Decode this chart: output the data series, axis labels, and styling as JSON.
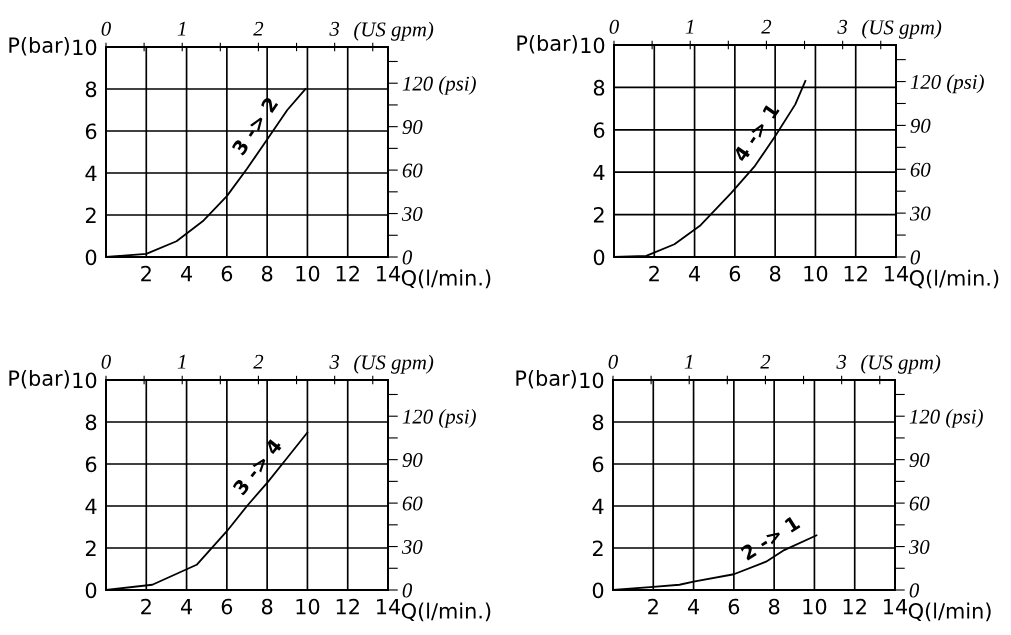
{
  "chart_data": [
    {
      "type": "line",
      "xlabel": "Q(l/min.)",
      "ylabel": "P(bar)",
      "x2label": "(US gpm)",
      "xlim": [
        0,
        14
      ],
      "ylim": [
        0,
        10
      ],
      "xticks": [
        2,
        4,
        6,
        8,
        10,
        12,
        14
      ],
      "yticks": [
        0,
        2,
        4,
        6,
        8,
        10
      ],
      "x2lim": [
        0,
        3.7
      ],
      "x2ticks": [
        0,
        {
          "value": 0.5,
          "label": null
        },
        1,
        {
          "value": 1.5,
          "label": null
        },
        2,
        {
          "value": 2.5,
          "label": null
        },
        3,
        {
          "value": 3.5,
          "label": null
        }
      ],
      "y2lim": [
        0,
        145
      ],
      "y2ticks": [
        0,
        {
          "value": 15,
          "label": null
        },
        30,
        {
          "value": 45,
          "label": null
        },
        60,
        {
          "value": 75,
          "label": null
        },
        90,
        {
          "value": 105,
          "label": null
        },
        {
          "value": 120,
          "label": "120 (psi)"
        },
        {
          "value": 135,
          "label": null
        }
      ],
      "grid": true,
      "marker": "none",
      "line_style": "solid",
      "series": [
        {
          "color": "#000000",
          "x": [
            0,
            2,
            3.5,
            4.8,
            6,
            7,
            8,
            9,
            9.9
          ],
          "values": [
            0,
            0.15,
            0.75,
            1.7,
            2.9,
            4.2,
            5.6,
            7,
            8
          ]
        }
      ],
      "annotations": [
        "3 -> 2"
      ]
    },
    {
      "type": "line",
      "xlabel": "Q(l/min.)",
      "ylabel": "P(bar)",
      "x2label": "(US gpm)",
      "xlim": [
        0,
        14
      ],
      "ylim": [
        0,
        10
      ],
      "xticks": [
        2,
        4,
        6,
        8,
        10,
        12,
        14
      ],
      "yticks": [
        0,
        2,
        4,
        6,
        8,
        10
      ],
      "x2lim": [
        0,
        3.7
      ],
      "x2ticks": [
        0,
        {
          "value": 0.5,
          "label": null
        },
        1,
        {
          "value": 1.5,
          "label": null
        },
        2,
        {
          "value": 2.5,
          "label": null
        },
        3,
        {
          "value": 3.5,
          "label": null
        }
      ],
      "y2lim": [
        0,
        145
      ],
      "y2ticks": [
        0,
        {
          "value": 15,
          "label": null
        },
        30,
        {
          "value": 45,
          "label": null
        },
        60,
        {
          "value": 75,
          "label": null
        },
        90,
        {
          "value": 105,
          "label": null
        },
        {
          "value": 120,
          "label": "120 (psi)"
        },
        {
          "value": 135,
          "label": null
        }
      ],
      "grid": true,
      "marker": "none",
      "line_style": "solid",
      "series": [
        {
          "color": "#000000",
          "x": [
            0,
            1.6,
            3,
            4.3,
            5.8,
            7,
            8,
            9,
            9.5
          ],
          "values": [
            0,
            0.05,
            0.6,
            1.5,
            3,
            4.3,
            5.7,
            7.2,
            8.3
          ]
        }
      ],
      "annotations": [
        "4 -> 1"
      ]
    },
    {
      "type": "line",
      "xlabel": "Q(l/min.)",
      "ylabel": "P(bar)",
      "x2label": "(US gpm)",
      "xlim": [
        0,
        14
      ],
      "ylim": [
        0,
        10
      ],
      "xticks": [
        2,
        4,
        6,
        8,
        10,
        12,
        14
      ],
      "yticks": [
        0,
        2,
        4,
        6,
        8,
        10
      ],
      "x2lim": [
        0,
        3.7
      ],
      "x2ticks": [
        0,
        {
          "value": 0.5,
          "label": null
        },
        1,
        {
          "value": 1.5,
          "label": null
        },
        2,
        {
          "value": 2.5,
          "label": null
        },
        3,
        {
          "value": 3.5,
          "label": null
        }
      ],
      "y2lim": [
        0,
        145
      ],
      "y2ticks": [
        0,
        {
          "value": 15,
          "label": null
        },
        30,
        {
          "value": 45,
          "label": null
        },
        60,
        {
          "value": 75,
          "label": null
        },
        90,
        {
          "value": 105,
          "label": null
        },
        {
          "value": 120,
          "label": "120 (psi)"
        },
        {
          "value": 135,
          "label": null
        }
      ],
      "grid": true,
      "marker": "none",
      "line_style": "solid",
      "series": [
        {
          "color": "#000000",
          "x": [
            0,
            2.3,
            4.5,
            6,
            7,
            8,
            9,
            10
          ],
          "values": [
            0,
            0.25,
            1.2,
            2.8,
            4,
            5.1,
            6.3,
            7.5
          ]
        }
      ],
      "annotations": [
        "3 -> 4"
      ]
    },
    {
      "type": "line",
      "xlabel": "Q(l/min)",
      "ylabel": "P(bar)",
      "x2label": "(US gpm)",
      "xlim": [
        0,
        14
      ],
      "ylim": [
        0,
        10
      ],
      "xticks": [
        2,
        4,
        6,
        8,
        10,
        12,
        14
      ],
      "yticks": [
        0,
        2,
        4,
        6,
        8,
        10
      ],
      "x2lim": [
        0,
        3.7
      ],
      "x2ticks": [
        0,
        {
          "value": 0.5,
          "label": null
        },
        1,
        {
          "value": 1.5,
          "label": null
        },
        2,
        {
          "value": 2.5,
          "label": null
        },
        3,
        {
          "value": 3.5,
          "label": null
        }
      ],
      "y2lim": [
        0,
        145
      ],
      "y2ticks": [
        0,
        {
          "value": 15,
          "label": null
        },
        30,
        {
          "value": 45,
          "label": null
        },
        60,
        {
          "value": 75,
          "label": null
        },
        90,
        {
          "value": 105,
          "label": null
        },
        {
          "value": 120,
          "label": "120 (psi)"
        },
        {
          "value": 135,
          "label": null
        }
      ],
      "grid": true,
      "marker": "none",
      "line_style": "solid",
      "series": [
        {
          "color": "#000000",
          "x": [
            0,
            2,
            3.3,
            4,
            6,
            7.6,
            8.5,
            10.1
          ],
          "values": [
            0,
            0.15,
            0.25,
            0.4,
            0.75,
            1.35,
            1.9,
            2.6
          ]
        }
      ],
      "annotations": [
        "2 -> 1"
      ]
    }
  ]
}
